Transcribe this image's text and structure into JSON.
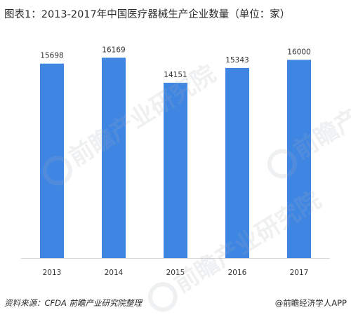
{
  "chart_data": {
    "type": "bar",
    "title": "图表1：2013-2017年中国医疗器械生产企业数量（单位：家）",
    "categories": [
      "2013",
      "2014",
      "2015",
      "2016",
      "2017"
    ],
    "values": [
      15698,
      16169,
      14151,
      15343,
      16000
    ],
    "xlabel": "",
    "ylabel": "",
    "ylim": [
      0,
      18000
    ],
    "grid": false,
    "legend": "none",
    "bar_color": "#3f86e3"
  },
  "footer": {
    "source": "资料来源：CFDA  前瞻产业研究院整理",
    "brand": "@前瞻经济学人APP"
  },
  "watermark": {
    "text": "前瞻产业研究院"
  }
}
